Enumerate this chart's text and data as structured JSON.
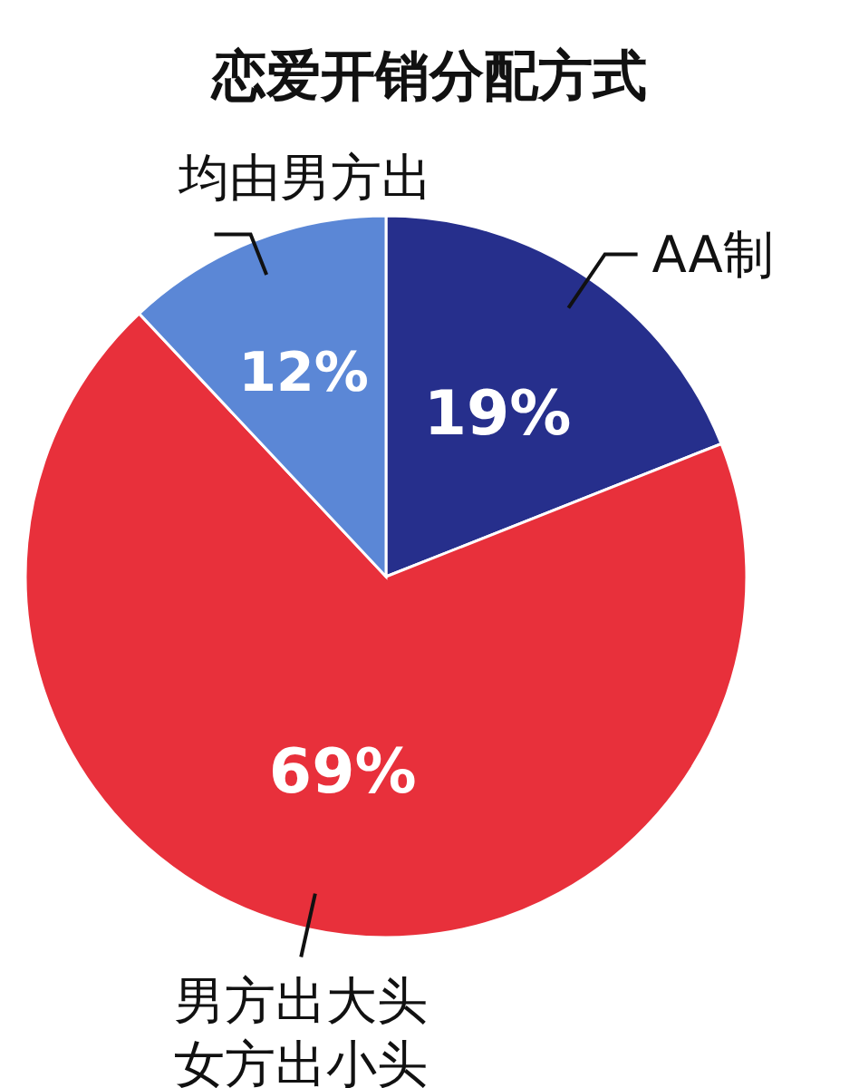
{
  "chart_data": {
    "type": "pie",
    "title": "恋爱开销分配方式",
    "categories": [
      "AA制",
      "男方出大头女方出小头",
      "均由男方出"
    ],
    "values": [
      19,
      69,
      12
    ],
    "colors": [
      "#262f8c",
      "#e8303b",
      "#5b87d6"
    ],
    "value_labels": [
      "19%",
      "69%",
      "12%"
    ]
  }
}
